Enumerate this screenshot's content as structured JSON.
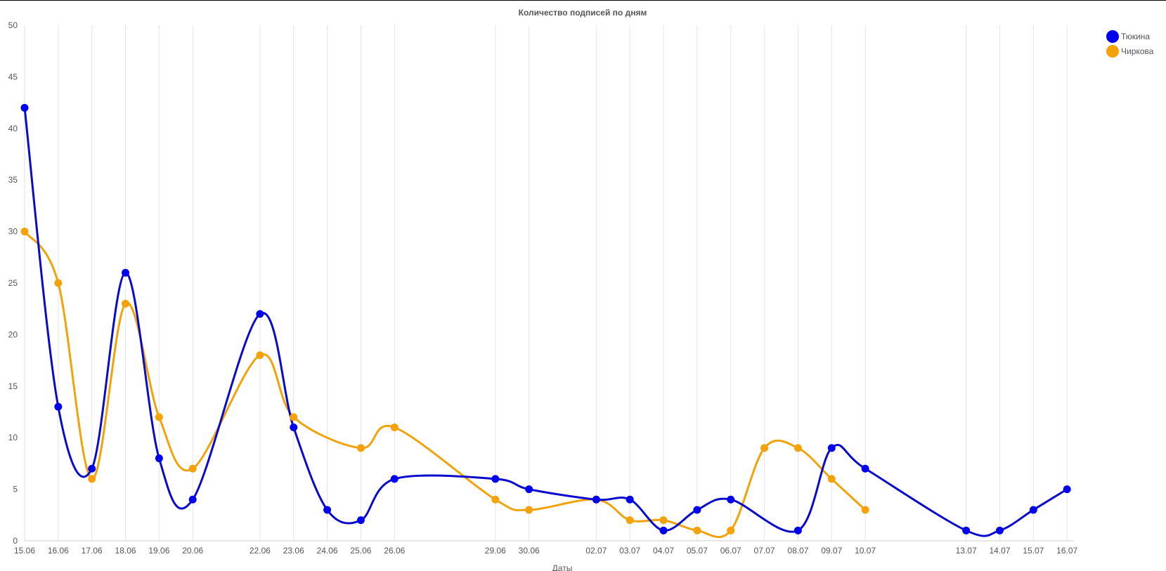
{
  "chart_data": {
    "type": "line",
    "title": "Количество подписей по дням",
    "xlabel": "Даты",
    "ylabel": "",
    "ylim": [
      0,
      50
    ],
    "yticks": [
      0,
      5,
      10,
      15,
      20,
      25,
      30,
      35,
      40,
      45,
      50
    ],
    "grid": "vertical",
    "legend_position": "top-right",
    "smooth": true,
    "categories": [
      "15.06",
      "16.06",
      "17.06",
      "18.06",
      "19.06",
      "20.06",
      "22.06",
      "23.06",
      "24.06",
      "25.06",
      "26.06",
      "29.06",
      "30.06",
      "02.07",
      "03.07",
      "04.07",
      "05.07",
      "06.07",
      "07.07",
      "08.07",
      "09.07",
      "10.07",
      "13.07",
      "14.07",
      "15.07",
      "16.07"
    ],
    "day_index": [
      0,
      1,
      2,
      3,
      4,
      5,
      7,
      8,
      9,
      10,
      11,
      14,
      15,
      17,
      18,
      19,
      20,
      21,
      22,
      23,
      24,
      25,
      28,
      29,
      30,
      31
    ],
    "series": [
      {
        "name": "Тюкина",
        "color": "#0a0acc",
        "marker_color": "#0000ee",
        "values": [
          42,
          13,
          7,
          26,
          8,
          4,
          22,
          11,
          3,
          2,
          6,
          6,
          5,
          4,
          4,
          1,
          3,
          4,
          null,
          1,
          9,
          7,
          1,
          1,
          3,
          5
        ]
      },
      {
        "name": "Чиркова",
        "color": "#f0a30a",
        "marker_color": "#f5a20a",
        "values": [
          30,
          25,
          6,
          23,
          12,
          7,
          18,
          12,
          null,
          9,
          11,
          4,
          3,
          4,
          2,
          2,
          1,
          1,
          9,
          9,
          6,
          3,
          null,
          null,
          null,
          null
        ]
      }
    ]
  }
}
